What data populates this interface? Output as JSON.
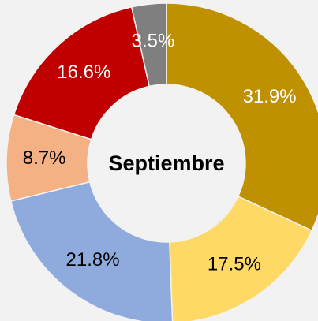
{
  "chart_data": {
    "type": "donut",
    "title": "Septiembre",
    "categories": [
      null,
      null,
      null,
      null,
      null,
      null
    ],
    "values": [
      31.9,
      17.5,
      21.8,
      8.7,
      16.6,
      3.5
    ],
    "value_labels": [
      "31.9%",
      "17.5%",
      "21.8%",
      "8.7%",
      "16.6%",
      "3.5%"
    ],
    "colors": [
      "#bf9000",
      "#ffd966",
      "#8faadc",
      "#f4b183",
      "#c00000",
      "#7f7f7f"
    ],
    "label_colors": [
      "#ffffff",
      "#000000",
      "#000000",
      "#000000",
      "#ffffff",
      "#ffffff"
    ]
  }
}
